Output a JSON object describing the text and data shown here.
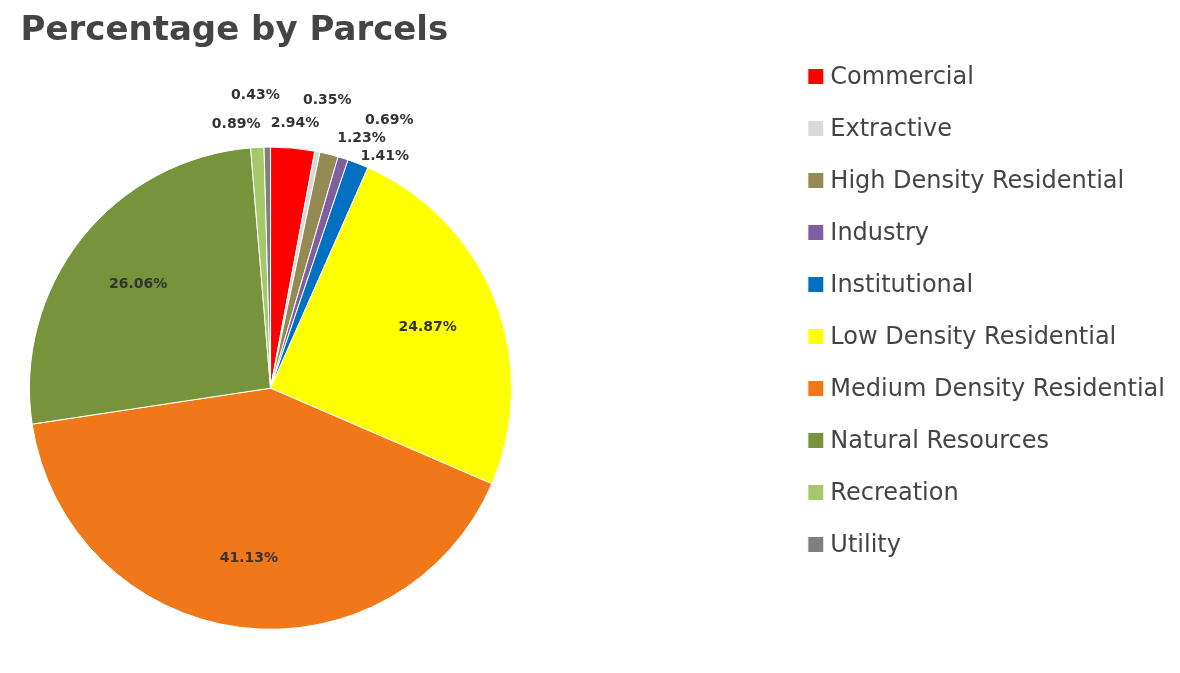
{
  "chart_data": {
    "type": "pie",
    "title": "Percentage by Parcels",
    "categories": [
      "Commercial",
      "Extractive",
      "High Density Residential",
      "Industry",
      "Institutional",
      "Low Density Residential",
      "Medium Density Residential",
      "Natural Resources",
      "Recreation",
      "Utility"
    ],
    "values": [
      2.94,
      0.35,
      1.23,
      0.69,
      1.41,
      24.87,
      41.13,
      26.06,
      0.89,
      0.43
    ],
    "value_labels": [
      "2.94%",
      "0.35%",
      "1.23%",
      "0.69%",
      "1.41%",
      "24.87%",
      "41.13%",
      "26.06%",
      "0.89%",
      "0.43%"
    ],
    "colors": [
      "#ff0000",
      "#d9d9d9",
      "#948a54",
      "#7f5fa0",
      "#0070c0",
      "#ffff00",
      "#f07818",
      "#77933c",
      "#a6c86a",
      "#7f7f7f"
    ],
    "legend": "right"
  }
}
